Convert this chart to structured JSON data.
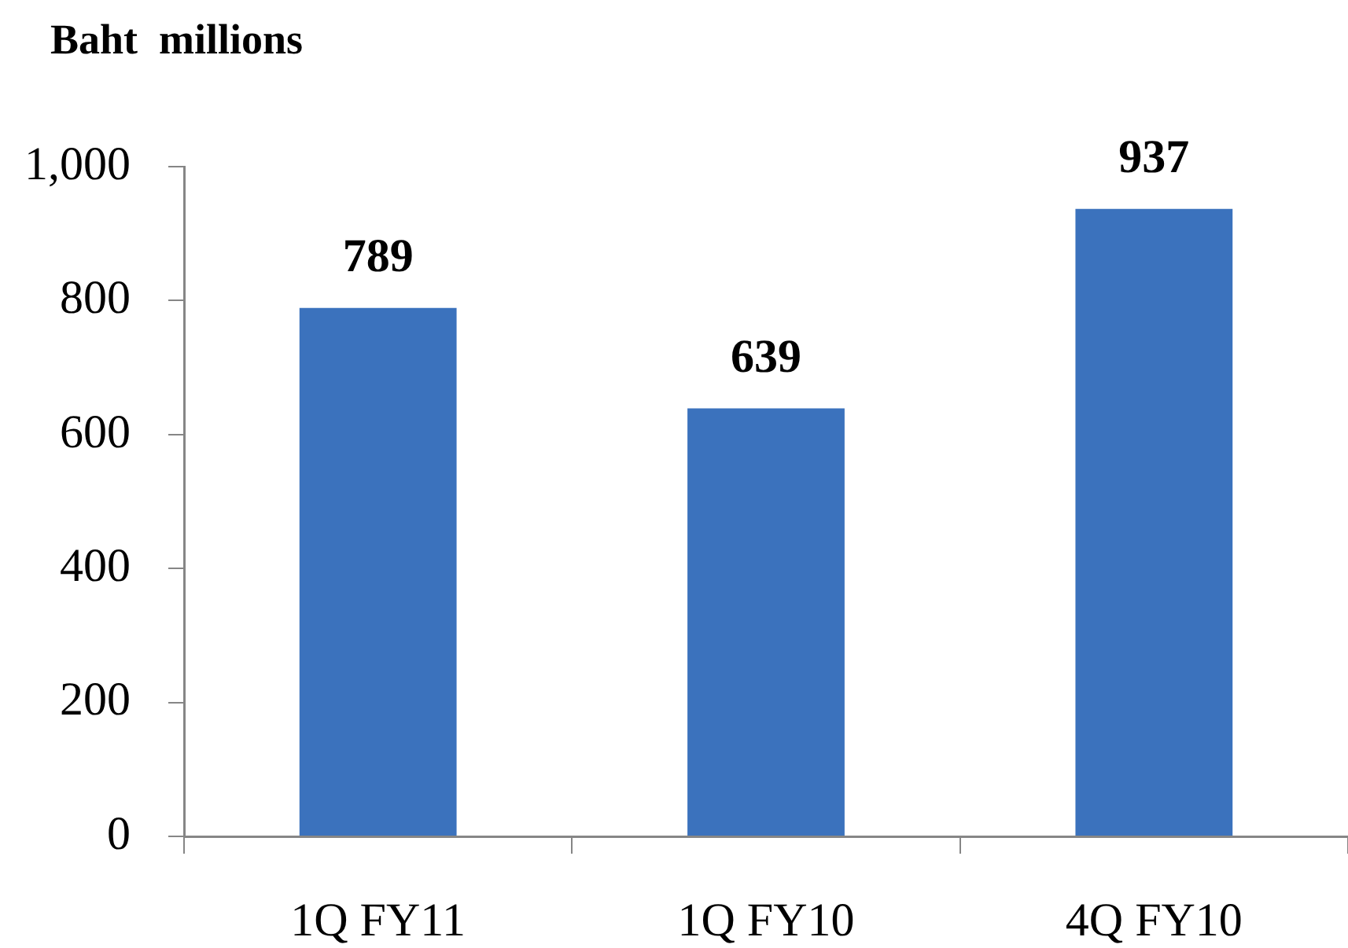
{
  "chart_data": {
    "type": "bar",
    "title": "Baht  millions",
    "categories": [
      "1Q FY11",
      "1Q FY10",
      "4Q FY10"
    ],
    "values": [
      789,
      639,
      937
    ],
    "color": "#3b72bd",
    "ylim": [
      0,
      1000
    ],
    "yticks": [
      0,
      200,
      400,
      600,
      800,
      {
        "value": 1000,
        "label": "1,000"
      }
    ],
    "data_labels": true
  }
}
